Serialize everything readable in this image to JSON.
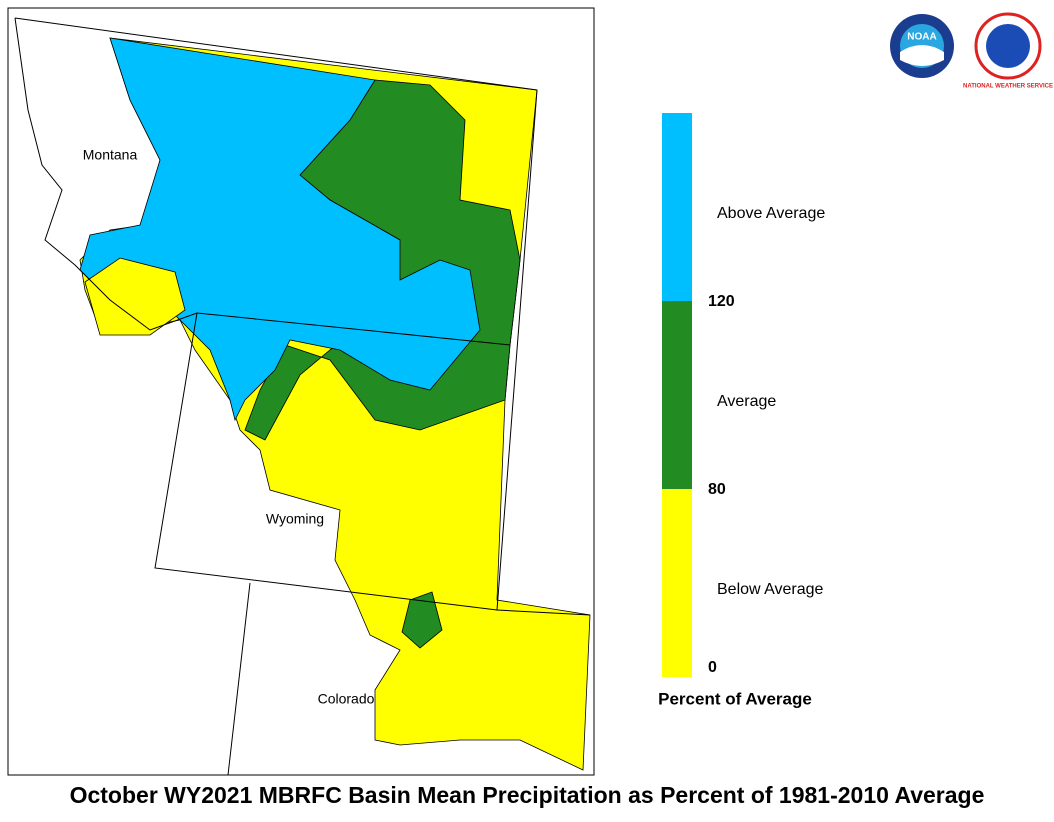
{
  "title": "October WY2021 MBRFC Basin Mean Precipitation as Percent of 1981-2010 Average",
  "map": {
    "state_labels": [
      "Montana",
      "Wyoming",
      "Colorado"
    ]
  },
  "legend": {
    "title": "Percent of Average",
    "bands": [
      {
        "label": "Below Average",
        "color": "#ffff00"
      },
      {
        "label": "Average",
        "color": "#228b22"
      },
      {
        "label": "Above Average",
        "color": "#00bfff"
      }
    ],
    "ticks": [
      0,
      80,
      120
    ]
  },
  "logos": [
    "NOAA",
    "NATIONAL WEATHER SERVICE"
  ]
}
